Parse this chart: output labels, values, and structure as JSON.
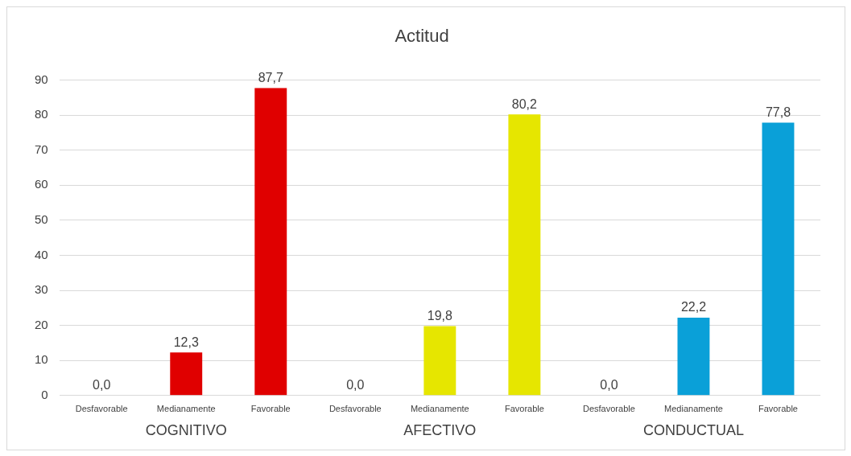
{
  "chart_data": {
    "type": "bar",
    "title": "Actitud",
    "categories": [
      "Desfavorable",
      "Medianamente",
      "Favorable",
      "Desfavorable",
      "Medianamente",
      "Favorable",
      "Desfavorable",
      "Medianamente",
      "Favorable"
    ],
    "values": [
      0.0,
      12.3,
      87.7,
      0.0,
      19.8,
      80.2,
      0.0,
      22.2,
      77.8
    ],
    "colors": [
      "#e00000",
      "#e00000",
      "#e00000",
      "#e6e600",
      "#e6e600",
      "#e6e600",
      "#0aa0d8",
      "#0aa0d8",
      "#0aa0d8"
    ],
    "value_labels": [
      "0,0",
      "12,3",
      "87,7",
      "0,0",
      "19,8",
      "80,2",
      "0,0",
      "22,2",
      "77,8"
    ],
    "annotations": [
      "COGNITIVO",
      "AFECTIVO",
      "CONDUCTUAL"
    ],
    "ylim": [
      0,
      90
    ],
    "yticks": [
      0,
      10,
      20,
      30,
      40,
      50,
      60,
      70,
      80,
      90
    ],
    "grid": "y",
    "legend": false
  }
}
